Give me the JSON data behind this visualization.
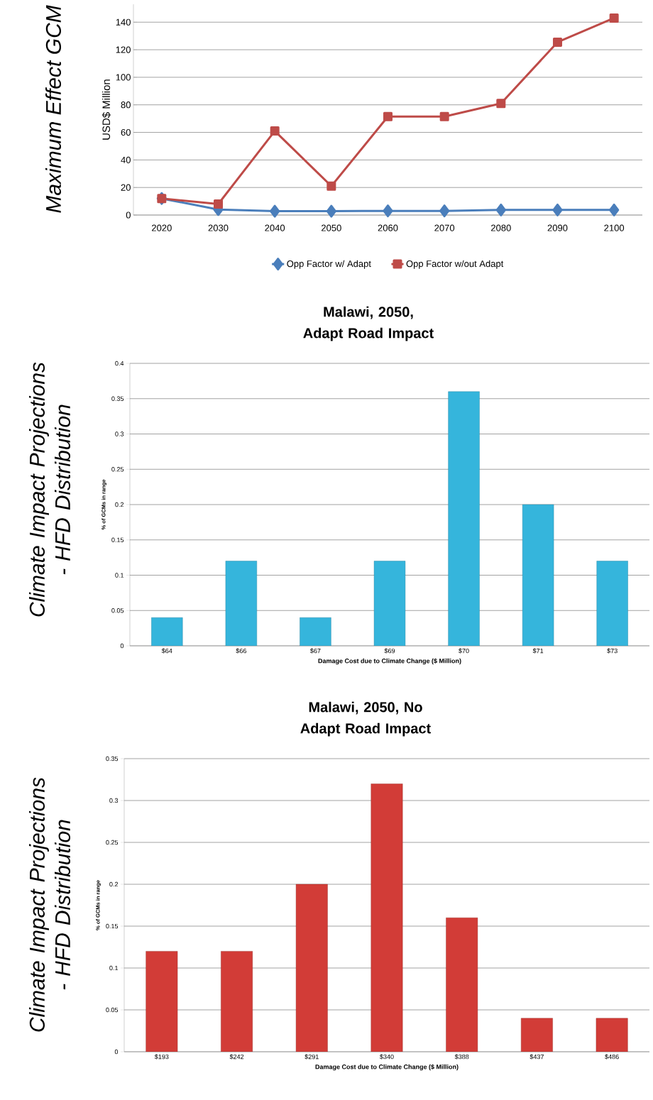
{
  "chart_data": [
    {
      "type": "line",
      "title": "Maximum Effect GCM",
      "ylabel": "USD$ Million",
      "categories": [
        "2020",
        "2030",
        "2040",
        "2050",
        "2060",
        "2070",
        "2080",
        "2090",
        "2100"
      ],
      "series": [
        {
          "name": "Opp Factor w/ Adapt",
          "color": "#4a7ebb",
          "marker": "diamond",
          "values": [
            12,
            4,
            2.8,
            2.8,
            3,
            3,
            3.7,
            3.7,
            3.7
          ]
        },
        {
          "name": "Opp Factor w/out Adapt",
          "color": "#be4b48",
          "marker": "square",
          "values": [
            12,
            8,
            61,
            21,
            71.5,
            71.5,
            81,
            125.5,
            143
          ]
        }
      ],
      "ylim": [
        0,
        153
      ],
      "yticks": [
        0,
        20,
        40,
        60,
        80,
        100,
        120,
        140
      ],
      "grid": "y",
      "legend": "bottom"
    },
    {
      "type": "bar",
      "title": "Malawi, 2050, Adapt Road Impact",
      "subtitle": "Climate Impact Projections - HFD Distribution",
      "xlabel": "Damage Cost due to Climate Change ($ Million)",
      "ylabel": "% of GCMs in range",
      "categories": [
        "$64",
        "$66",
        "$67",
        "$69",
        "$70",
        "$71",
        "$73"
      ],
      "values": [
        0.04,
        0.12,
        0.04,
        0.12,
        0.36,
        0.2,
        0.12
      ],
      "color": "#35b5dc",
      "ylim": [
        0,
        0.4
      ],
      "yticks": [
        0,
        0.05,
        0.1,
        0.15,
        0.2,
        0.25,
        0.3,
        0.35,
        0.4
      ],
      "grid": "y"
    },
    {
      "type": "bar",
      "title": "Malawi, 2050, No Adapt Road Impact",
      "subtitle": "Climate Impact Projections - HFD Distribution",
      "xlabel": "Damage Cost due to Climate Change ($ Million)",
      "ylabel": "% of GCMs in range",
      "categories": [
        "$193",
        "$242",
        "$291",
        "$340",
        "$388",
        "$437",
        "$486"
      ],
      "values": [
        0.12,
        0.12,
        0.2,
        0.32,
        0.16,
        0.04,
        0.04
      ],
      "color": "#d23c37",
      "ylim": [
        0,
        0.35
      ],
      "yticks": [
        0,
        0.05,
        0.1,
        0.15,
        0.2,
        0.25,
        0.3,
        0.35
      ],
      "grid": "y"
    }
  ]
}
